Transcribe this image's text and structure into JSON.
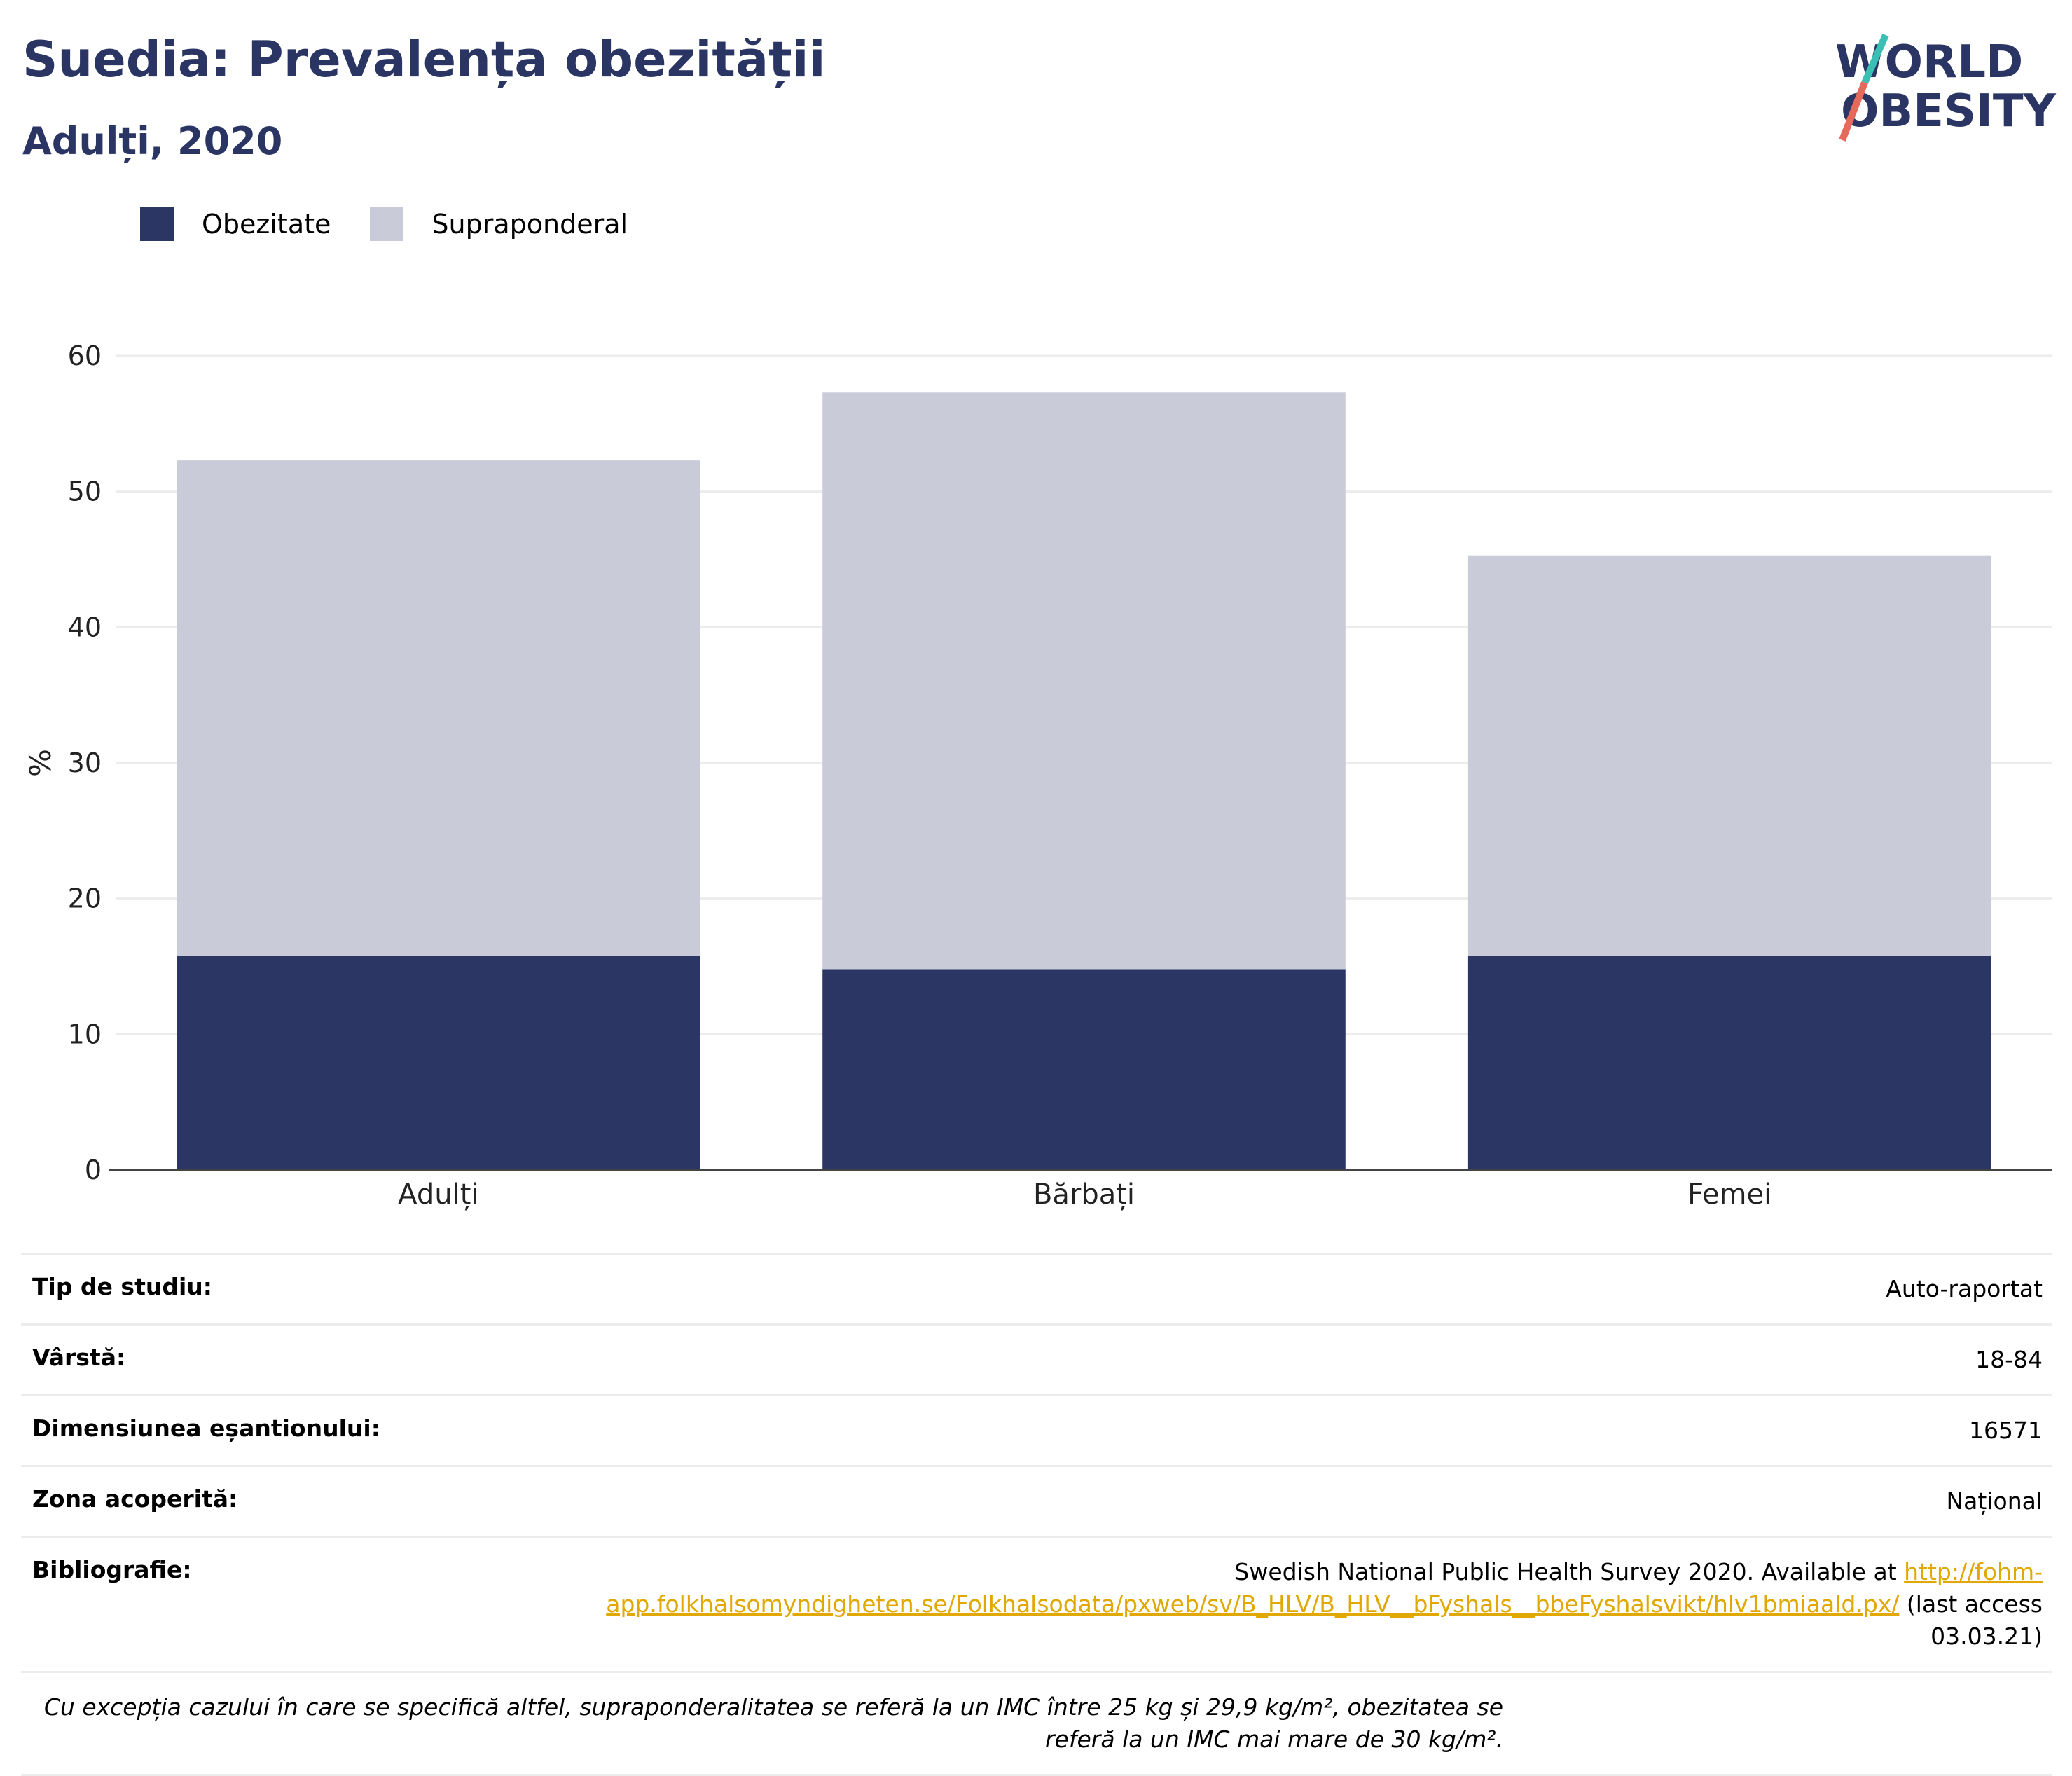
{
  "header": {
    "title": "Suedia: Prevalența obezității",
    "subtitle": "Adulți, 2020"
  },
  "logo": {
    "line1": "WORLD",
    "line2": "OBESITY"
  },
  "colors": {
    "obesity": "#2b3665",
    "overweight": "#c9cbd8",
    "title": "#2a3564",
    "link": "#e0a800"
  },
  "legend": [
    {
      "label": "Obezitate",
      "color": "#2b3665"
    },
    {
      "label": "Supraponderal",
      "color": "#c9cbd8"
    }
  ],
  "chart_data": {
    "type": "bar",
    "stacked": true,
    "categories": [
      "Adulți",
      "Bărbați",
      "Femei"
    ],
    "series": [
      {
        "name": "Obezitate",
        "values": [
          15.8,
          14.8,
          15.8
        ]
      },
      {
        "name": "Supraponderal",
        "values": [
          36.5,
          42.5,
          29.5
        ]
      }
    ],
    "ylabel": "%",
    "ylim": [
      0,
      60
    ],
    "yticks": [
      0,
      10,
      20,
      30,
      40,
      50,
      60
    ],
    "grid": true,
    "legend_position": "top-left"
  },
  "info": {
    "study_type_label": "Tip de studiu:",
    "study_type": "Auto-raportat",
    "age_label": "Vârstă:",
    "age": "18-84",
    "sample_label": "Dimensiunea eșantionului:",
    "sample": "16571",
    "area_label": "Zona acoperită:",
    "area": "Național",
    "biblio_label": "Bibliografie:",
    "biblio_text": "Swedish National Public Health Survey 2020. Available at ",
    "biblio_link": "http://fohm-app.folkhalsomyndigheten.se/Folkhalsodata/pxweb/sv/B_HLV/B_HLV__bFyshals__bbeFyshalsvikt/hlv1bmiaald.px/",
    "biblio_after": " (last access 03.03.21)",
    "note": "Cu excepția cazului în care se specifică altfel, supraponderalitatea se referă la un IMC între 25 kg și 29,9 kg/m², obezitatea se referă la un IMC mai mare de 30 kg/m²."
  }
}
